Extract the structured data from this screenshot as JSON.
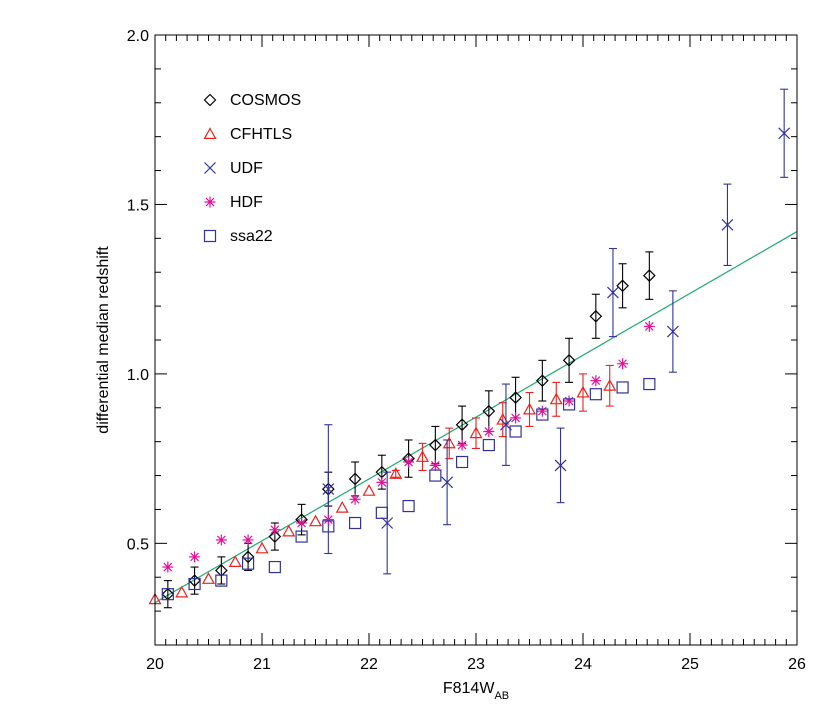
{
  "chart_data": {
    "type": "scatter",
    "xlabel": "F814W",
    "xlabel_sub": "AB",
    "ylabel": "differential median redshift",
    "xlim": [
      20,
      26
    ],
    "ylim": [
      0.2,
      2.0
    ],
    "x_ticks": [
      20,
      21,
      22,
      23,
      24,
      25,
      26
    ],
    "x_tick_labels": [
      "20",
      "21",
      "22",
      "23",
      "24",
      "25",
      "26"
    ],
    "y_ticks": [
      0.5,
      1.0,
      1.5,
      2.0
    ],
    "y_tick_labels": [
      "0.5",
      "1.0",
      "1.5",
      "2.0"
    ],
    "legend_position": "top-left",
    "fit_line": {
      "x": [
        20,
        26
      ],
      "y": [
        0.325,
        1.42
      ],
      "color": "#1fa870"
    },
    "series": [
      {
        "name": "COSMOS",
        "marker": "diamond",
        "color": "#000000",
        "points": [
          [
            20.12,
            0.35,
            0.04
          ],
          [
            20.37,
            0.39,
            0.04
          ],
          [
            20.62,
            0.42,
            0.04
          ],
          [
            20.87,
            0.46,
            0.04
          ],
          [
            21.12,
            0.52,
            0.04
          ],
          [
            21.37,
            0.57,
            0.045
          ],
          [
            21.62,
            0.66,
            0.05
          ],
          [
            21.87,
            0.69,
            0.05
          ],
          [
            22.12,
            0.71,
            0.05
          ],
          [
            22.37,
            0.75,
            0.055
          ],
          [
            22.62,
            0.79,
            0.055
          ],
          [
            22.87,
            0.85,
            0.055
          ],
          [
            23.12,
            0.89,
            0.06
          ],
          [
            23.37,
            0.93,
            0.06
          ],
          [
            23.62,
            0.98,
            0.06
          ],
          [
            23.87,
            1.04,
            0.065
          ],
          [
            24.12,
            1.17,
            0.065
          ],
          [
            24.37,
            1.26,
            0.065
          ],
          [
            24.62,
            1.29,
            0.07
          ]
        ]
      },
      {
        "name": "CFHTLS",
        "marker": "triangle",
        "color": "#e8231f",
        "points": [
          [
            20.0,
            0.335,
            0
          ],
          [
            20.25,
            0.355,
            0
          ],
          [
            20.5,
            0.395,
            0
          ],
          [
            20.75,
            0.445,
            0
          ],
          [
            21.0,
            0.485,
            0
          ],
          [
            21.25,
            0.535,
            0
          ],
          [
            21.5,
            0.565,
            0
          ],
          [
            21.75,
            0.605,
            0
          ],
          [
            22.0,
            0.655,
            0
          ],
          [
            22.25,
            0.705,
            0.01
          ],
          [
            22.5,
            0.755,
            0.04
          ],
          [
            22.75,
            0.795,
            0.045
          ],
          [
            23.0,
            0.825,
            0.045
          ],
          [
            23.25,
            0.865,
            0.05
          ],
          [
            23.5,
            0.895,
            0.05
          ],
          [
            23.75,
            0.925,
            0.05
          ],
          [
            24.0,
            0.945,
            0.055
          ],
          [
            24.25,
            0.965,
            0.06
          ]
        ]
      },
      {
        "name": "UDF",
        "marker": "cross",
        "color": "#32329a",
        "points": [
          [
            21.62,
            0.66,
            0.19
          ],
          [
            22.17,
            0.56,
            0.15
          ],
          [
            22.73,
            0.68,
            0.125
          ],
          [
            23.28,
            0.85,
            0.12
          ],
          [
            23.79,
            0.73,
            0.11
          ],
          [
            24.28,
            1.24,
            0.13
          ],
          [
            24.84,
            1.125,
            0.12
          ],
          [
            25.35,
            1.44,
            0.12
          ],
          [
            25.88,
            1.71,
            0.13
          ]
        ]
      },
      {
        "name": "HDF",
        "marker": "asterisk",
        "color": "#e0119a",
        "points": [
          [
            20.12,
            0.43,
            0
          ],
          [
            20.37,
            0.46,
            0
          ],
          [
            20.62,
            0.51,
            0
          ],
          [
            20.87,
            0.51,
            0
          ],
          [
            21.12,
            0.54,
            0
          ],
          [
            21.37,
            0.56,
            0
          ],
          [
            21.62,
            0.57,
            0
          ],
          [
            21.87,
            0.63,
            0
          ],
          [
            22.12,
            0.68,
            0
          ],
          [
            22.37,
            0.74,
            0
          ],
          [
            22.62,
            0.73,
            0
          ],
          [
            22.87,
            0.79,
            0
          ],
          [
            23.12,
            0.83,
            0
          ],
          [
            23.37,
            0.87,
            0
          ],
          [
            23.62,
            0.89,
            0
          ],
          [
            23.87,
            0.92,
            0
          ],
          [
            24.12,
            0.98,
            0
          ],
          [
            24.37,
            1.03,
            0
          ],
          [
            24.62,
            1.14,
            0
          ]
        ]
      },
      {
        "name": "ssa22",
        "marker": "square",
        "color": "#32329a",
        "points": [
          [
            20.12,
            0.35,
            0
          ],
          [
            20.37,
            0.38,
            0
          ],
          [
            20.62,
            0.39,
            0
          ],
          [
            20.87,
            0.44,
            0
          ],
          [
            21.12,
            0.43,
            0
          ],
          [
            21.37,
            0.52,
            0
          ],
          [
            21.62,
            0.55,
            0
          ],
          [
            21.87,
            0.56,
            0
          ],
          [
            22.12,
            0.59,
            0
          ],
          [
            22.37,
            0.61,
            0
          ],
          [
            22.62,
            0.7,
            0
          ],
          [
            22.87,
            0.74,
            0
          ],
          [
            23.12,
            0.79,
            0
          ],
          [
            23.37,
            0.83,
            0
          ],
          [
            23.62,
            0.88,
            0
          ],
          [
            23.87,
            0.91,
            0
          ],
          [
            24.12,
            0.94,
            0
          ],
          [
            24.37,
            0.96,
            0
          ],
          [
            24.62,
            0.97,
            0
          ]
        ]
      }
    ]
  }
}
